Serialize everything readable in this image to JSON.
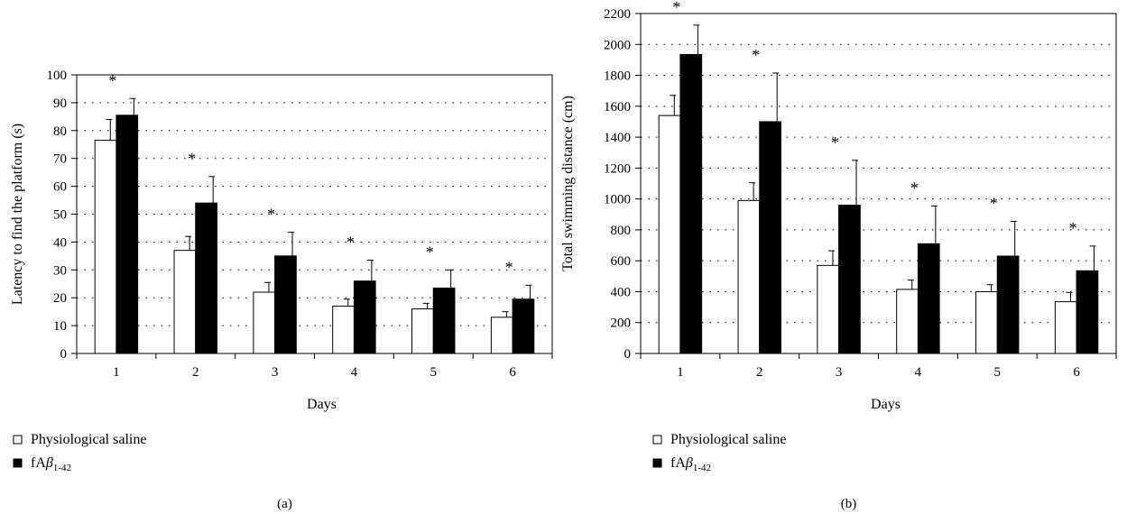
{
  "chart_data": [
    {
      "type": "bar",
      "panel_label": "(a)",
      "xlabel": "Days",
      "ylabel": "Latency to find the platform (s)",
      "ylim": [
        0,
        100
      ],
      "ytick_step": 10,
      "categories": [
        "1",
        "2",
        "3",
        "4",
        "5",
        "6"
      ],
      "grid": "dotted horizontal",
      "legend_placement": "below",
      "series": [
        {
          "name": "Physiological saline",
          "color": "#ffffff",
          "values": [
            76.5,
            37,
            22,
            17,
            16,
            13
          ],
          "errors": [
            7.5,
            5,
            3.5,
            2.5,
            2,
            2
          ]
        },
        {
          "name": "fAβ1-42",
          "color": "#000000",
          "values": [
            85.5,
            54,
            35,
            26,
            23.5,
            19.5
          ],
          "errors": [
            6,
            9.5,
            8.5,
            7.5,
            6.5,
            5
          ]
        }
      ],
      "annotations": [
        "*",
        "*",
        "*",
        "*",
        "*",
        "*"
      ]
    },
    {
      "type": "bar",
      "panel_label": "(b)",
      "xlabel": "Days",
      "ylabel": "Total swimming distance (cm)",
      "ylim": [
        0,
        2200
      ],
      "ytick_step": 200,
      "categories": [
        "1",
        "2",
        "3",
        "4",
        "5",
        "6"
      ],
      "grid": "dotted horizontal",
      "legend_placement": "below",
      "series": [
        {
          "name": "Physiological saline",
          "color": "#ffffff",
          "values": [
            1540,
            990,
            570,
            415,
            400,
            335
          ],
          "errors": [
            130,
            115,
            95,
            60,
            45,
            60
          ]
        },
        {
          "name": "fAβ1-42",
          "color": "#000000",
          "values": [
            1935,
            1500,
            960,
            710,
            630,
            535
          ],
          "errors": [
            190,
            315,
            290,
            245,
            225,
            160
          ]
        }
      ],
      "annotations": [
        "*",
        "*",
        "*",
        "*",
        "*",
        "*"
      ]
    }
  ]
}
